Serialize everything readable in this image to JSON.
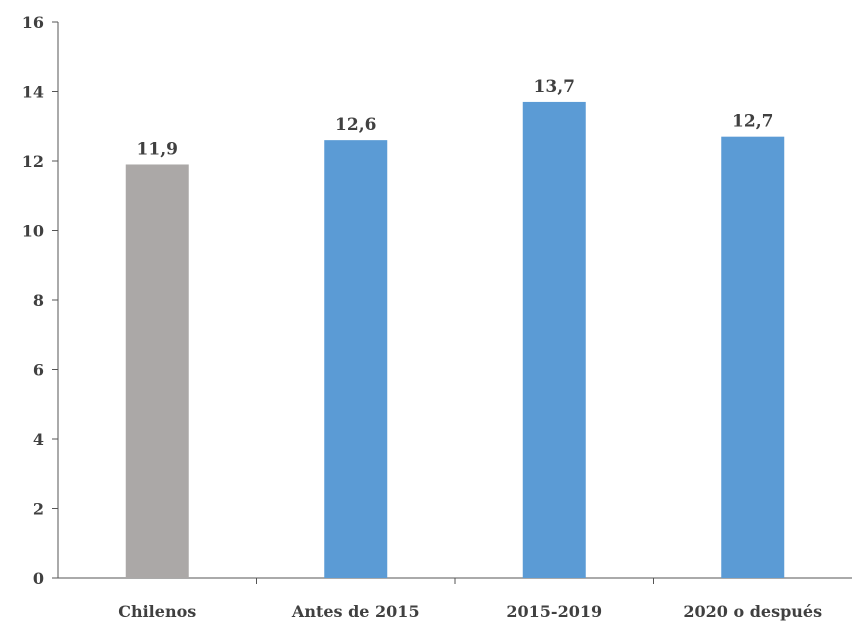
{
  "chart_data": {
    "type": "bar",
    "categories": [
      "Chilenos",
      "Antes de 2015",
      "2015-2019",
      "2020 o después"
    ],
    "values": [
      11.9,
      12.6,
      13.7,
      12.7
    ],
    "value_labels": [
      "11,9",
      "12,6",
      "13,7",
      "12,7"
    ],
    "bar_colors": [
      "#aba8a7",
      "#5b9bd5",
      "#5b9bd5",
      "#5b9bd5"
    ],
    "title": "",
    "xlabel": "",
    "ylabel": "",
    "ylim": [
      0,
      16
    ],
    "yticks": [
      0,
      2,
      4,
      6,
      8,
      10,
      12,
      14,
      16
    ],
    "grid": false,
    "legend": "none"
  }
}
